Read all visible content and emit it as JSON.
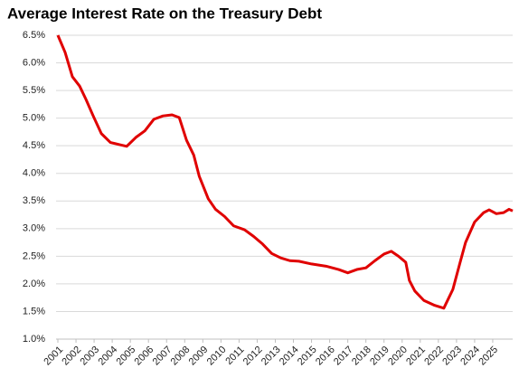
{
  "chart_data": {
    "type": "line",
    "title": "Average Interest Rate on the Treasury Debt",
    "x": [
      2001.0,
      2001.4,
      2001.8,
      2002.2,
      2002.55,
      2002.95,
      2003.4,
      2003.9,
      2004.4,
      2004.8,
      2005.3,
      2005.8,
      2006.3,
      2006.8,
      2007.3,
      2007.7,
      2008.1,
      2008.5,
      2008.8,
      2009.3,
      2009.7,
      2010.2,
      2010.7,
      2011.3,
      2011.8,
      2012.3,
      2012.8,
      2013.3,
      2013.8,
      2014.3,
      2015.0,
      2015.8,
      2016.5,
      2017.0,
      2017.5,
      2018.0,
      2018.5,
      2019.0,
      2019.4,
      2019.8,
      2020.2,
      2020.4,
      2020.7,
      2021.2,
      2021.8,
      2022.3,
      2022.8,
      2023.2,
      2023.5,
      2024.0,
      2024.5,
      2024.8,
      2025.2,
      2025.6,
      2025.9,
      2026.1
    ],
    "series": [
      {
        "color": "#e00000",
        "values": [
          6.5,
          6.19,
          5.75,
          5.58,
          5.34,
          5.04,
          4.72,
          4.56,
          4.52,
          4.49,
          4.65,
          4.77,
          4.98,
          5.04,
          5.06,
          5.01,
          4.6,
          4.33,
          3.95,
          3.54,
          3.35,
          3.22,
          3.05,
          2.98,
          2.86,
          2.72,
          2.55,
          2.47,
          2.42,
          2.41,
          2.36,
          2.32,
          2.26,
          2.2,
          2.26,
          2.29,
          2.42,
          2.54,
          2.59,
          2.5,
          2.39,
          2.06,
          1.87,
          1.7,
          1.61,
          1.56,
          1.9,
          2.39,
          2.75,
          3.12,
          3.29,
          3.34,
          3.27,
          3.29,
          3.35,
          3.32
        ]
      }
    ],
    "xlim": [
      2000.9,
      2026.1
    ],
    "xticks": [
      2001,
      2002,
      2003,
      2004,
      2005,
      2006,
      2007,
      2008,
      2009,
      2010,
      2011,
      2012,
      2013,
      2014,
      2015,
      2016,
      2017,
      2018,
      2019,
      2020,
      2021,
      2022,
      2023,
      2024,
      2025
    ],
    "ylim": [
      1.0,
      6.5
    ],
    "yticks": [
      {
        "value": 1.0,
        "label": "1.0%"
      },
      {
        "value": 1.5,
        "label": "1.5%"
      },
      {
        "value": 2.0,
        "label": "2.0%"
      },
      {
        "value": 2.5,
        "label": "2.5%"
      },
      {
        "value": 3.0,
        "label": "3.0%"
      },
      {
        "value": 3.5,
        "label": "3.5%"
      },
      {
        "value": 4.0,
        "label": "4.0%"
      },
      {
        "value": 4.5,
        "label": "4.5%"
      },
      {
        "value": 5.0,
        "label": "5.0%"
      },
      {
        "value": 5.5,
        "label": "5.5%"
      },
      {
        "value": 6.0,
        "label": "6.0%"
      },
      {
        "value": 6.5,
        "label": "6.5%"
      }
    ],
    "grid": true
  }
}
